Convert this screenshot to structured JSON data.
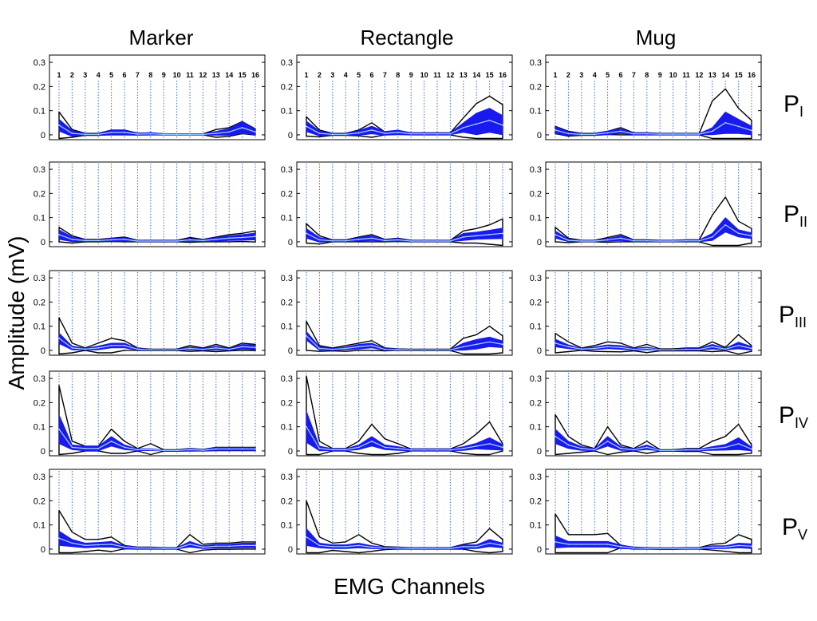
{
  "figure": {
    "columns": [
      "Marker",
      "Rectangle",
      "Mug"
    ],
    "rows": [
      {
        "main": "P",
        "sub": "I"
      },
      {
        "main": "P",
        "sub": "II"
      },
      {
        "main": "P",
        "sub": "III"
      },
      {
        "main": "P",
        "sub": "IV"
      },
      {
        "main": "P",
        "sub": "V"
      }
    ],
    "ylabel": "Amplitude (mV)",
    "xlabel": "EMG Channels"
  },
  "colors": {
    "band_fill": "#1a1aee",
    "envelope": "#000000",
    "mean_line": "#9fd8ff",
    "channel_grid": "#3a6ad8"
  },
  "chart_data": {
    "type": "line",
    "x": [
      1,
      2,
      3,
      4,
      5,
      6,
      7,
      8,
      9,
      10,
      11,
      12,
      13,
      14,
      15,
      16
    ],
    "channel_labels": [
      "1",
      "2",
      "3",
      "4",
      "5",
      "6",
      "7",
      "8",
      "9",
      "10",
      "11",
      "12",
      "13",
      "14",
      "15",
      "16"
    ],
    "channel_labels_shown_in_row": 0,
    "ylim": [
      -0.02,
      0.33
    ],
    "yticks": [
      0,
      0.1,
      0.2,
      0.3
    ],
    "ytick_labels": [
      "0",
      "0.1",
      "0.2",
      "0.3"
    ],
    "vertical_channel_grid": true,
    "panels": [
      {
        "column": "Marker",
        "row": "PI",
        "mean": [
          0.04,
          0.006,
          0.002,
          0.002,
          0.01,
          0.01,
          0.003,
          0.004,
          0.002,
          0.002,
          0.002,
          0.002,
          0.006,
          0.012,
          0.03,
          0.012
        ],
        "inner": [
          0.025,
          0.012,
          0.004,
          0.004,
          0.01,
          0.01,
          0.004,
          0.005,
          0.003,
          0.003,
          0.003,
          0.003,
          0.008,
          0.014,
          0.025,
          0.012
        ],
        "outer": [
          0.095,
          0.022,
          0.006,
          0.006,
          0.02,
          0.02,
          0.007,
          0.008,
          0.004,
          0.004,
          0.004,
          0.004,
          0.022,
          0.03,
          0.055,
          0.025
        ]
      },
      {
        "column": "Rectangle",
        "row": "PI",
        "mean": [
          0.035,
          0.006,
          0.002,
          0.002,
          0.008,
          0.02,
          0.006,
          0.01,
          0.004,
          0.004,
          0.004,
          0.004,
          0.03,
          0.045,
          0.06,
          0.04
        ],
        "inner": [
          0.022,
          0.01,
          0.004,
          0.004,
          0.01,
          0.016,
          0.008,
          0.01,
          0.004,
          0.004,
          0.004,
          0.004,
          0.02,
          0.045,
          0.05,
          0.04
        ],
        "outer": [
          0.075,
          0.02,
          0.006,
          0.006,
          0.02,
          0.05,
          0.012,
          0.018,
          0.008,
          0.008,
          0.008,
          0.008,
          0.07,
          0.13,
          0.16,
          0.125
        ]
      },
      {
        "column": "Mug",
        "row": "PI",
        "mean": [
          0.02,
          0.005,
          0.002,
          0.002,
          0.008,
          0.015,
          0.004,
          0.004,
          0.003,
          0.003,
          0.003,
          0.003,
          0.015,
          0.05,
          0.035,
          0.018
        ],
        "inner": [
          0.014,
          0.008,
          0.004,
          0.004,
          0.008,
          0.01,
          0.004,
          0.004,
          0.003,
          0.003,
          0.003,
          0.003,
          0.015,
          0.045,
          0.03,
          0.018
        ],
        "outer": [
          0.035,
          0.015,
          0.006,
          0.006,
          0.015,
          0.03,
          0.008,
          0.008,
          0.006,
          0.006,
          0.006,
          0.006,
          0.14,
          0.19,
          0.11,
          0.06
        ]
      },
      {
        "column": "Marker",
        "row": "PII",
        "mean": [
          0.03,
          0.01,
          0.005,
          0.005,
          0.008,
          0.01,
          0.003,
          0.003,
          0.003,
          0.003,
          0.008,
          0.005,
          0.01,
          0.015,
          0.018,
          0.022
        ],
        "inner": [
          0.02,
          0.01,
          0.004,
          0.004,
          0.006,
          0.008,
          0.003,
          0.003,
          0.003,
          0.003,
          0.006,
          0.004,
          0.008,
          0.01,
          0.012,
          0.014
        ],
        "outer": [
          0.06,
          0.025,
          0.01,
          0.01,
          0.015,
          0.02,
          0.006,
          0.006,
          0.006,
          0.006,
          0.018,
          0.01,
          0.02,
          0.03,
          0.035,
          0.045
        ]
      },
      {
        "column": "Rectangle",
        "row": "PII",
        "mean": [
          0.035,
          0.008,
          0.004,
          0.004,
          0.01,
          0.015,
          0.005,
          0.008,
          0.003,
          0.003,
          0.003,
          0.003,
          0.02,
          0.025,
          0.03,
          0.035
        ],
        "inner": [
          0.02,
          0.01,
          0.004,
          0.004,
          0.008,
          0.01,
          0.004,
          0.006,
          0.003,
          0.003,
          0.003,
          0.003,
          0.015,
          0.015,
          0.018,
          0.022
        ],
        "outer": [
          0.075,
          0.025,
          0.008,
          0.008,
          0.02,
          0.03,
          0.01,
          0.015,
          0.006,
          0.006,
          0.006,
          0.006,
          0.045,
          0.055,
          0.07,
          0.095
        ]
      },
      {
        "column": "Mug",
        "row": "PII",
        "mean": [
          0.03,
          0.006,
          0.003,
          0.003,
          0.008,
          0.015,
          0.004,
          0.004,
          0.003,
          0.003,
          0.004,
          0.004,
          0.02,
          0.07,
          0.035,
          0.025
        ],
        "inner": [
          0.015,
          0.006,
          0.003,
          0.003,
          0.006,
          0.01,
          0.004,
          0.004,
          0.003,
          0.003,
          0.004,
          0.004,
          0.015,
          0.03,
          0.015,
          0.012
        ],
        "outer": [
          0.06,
          0.015,
          0.006,
          0.006,
          0.018,
          0.03,
          0.008,
          0.008,
          0.006,
          0.006,
          0.008,
          0.008,
          0.11,
          0.185,
          0.085,
          0.055
        ]
      },
      {
        "column": "Marker",
        "row": "PIII",
        "mean": [
          0.05,
          0.01,
          0.005,
          0.01,
          0.02,
          0.02,
          0.005,
          0.002,
          0.002,
          0.002,
          0.008,
          0.004,
          0.01,
          0.004,
          0.015,
          0.012
        ],
        "inner": [
          0.022,
          0.008,
          0.004,
          0.008,
          0.01,
          0.01,
          0.004,
          0.002,
          0.002,
          0.002,
          0.006,
          0.004,
          0.008,
          0.004,
          0.01,
          0.01
        ],
        "outer": [
          0.135,
          0.03,
          0.01,
          0.03,
          0.05,
          0.04,
          0.01,
          0.005,
          0.005,
          0.005,
          0.02,
          0.01,
          0.025,
          0.01,
          0.03,
          0.025
        ]
      },
      {
        "column": "Rectangle",
        "row": "PIII",
        "mean": [
          0.06,
          0.008,
          0.004,
          0.008,
          0.015,
          0.02,
          0.004,
          0.003,
          0.002,
          0.002,
          0.002,
          0.002,
          0.015,
          0.025,
          0.035,
          0.025
        ],
        "inner": [
          0.018,
          0.008,
          0.004,
          0.006,
          0.01,
          0.01,
          0.004,
          0.003,
          0.002,
          0.002,
          0.002,
          0.002,
          0.015,
          0.02,
          0.02,
          0.014
        ],
        "outer": [
          0.12,
          0.02,
          0.01,
          0.02,
          0.03,
          0.04,
          0.01,
          0.006,
          0.005,
          0.005,
          0.005,
          0.005,
          0.05,
          0.065,
          0.1,
          0.06
        ]
      },
      {
        "column": "Mug",
        "row": "PIII",
        "mean": [
          0.03,
          0.015,
          0.005,
          0.008,
          0.015,
          0.012,
          0.004,
          0.008,
          0.002,
          0.002,
          0.004,
          0.004,
          0.015,
          0.005,
          0.02,
          0.008
        ],
        "inner": [
          0.016,
          0.008,
          0.004,
          0.006,
          0.008,
          0.008,
          0.004,
          0.006,
          0.002,
          0.002,
          0.004,
          0.004,
          0.01,
          0.004,
          0.014,
          0.008
        ],
        "outer": [
          0.07,
          0.035,
          0.01,
          0.02,
          0.035,
          0.03,
          0.01,
          0.025,
          0.006,
          0.006,
          0.01,
          0.01,
          0.035,
          0.012,
          0.065,
          0.02
        ]
      },
      {
        "column": "Marker",
        "row": "PIV",
        "mean": [
          0.09,
          0.015,
          0.01,
          0.01,
          0.04,
          0.015,
          0.005,
          0.005,
          0.002,
          0.002,
          0.005,
          0.003,
          0.008,
          0.008,
          0.008,
          0.008
        ],
        "inner": [
          0.06,
          0.01,
          0.01,
          0.01,
          0.02,
          0.01,
          0.004,
          0.004,
          0.002,
          0.002,
          0.004,
          0.003,
          0.006,
          0.006,
          0.006,
          0.006
        ],
        "outer": [
          0.27,
          0.04,
          0.02,
          0.02,
          0.09,
          0.04,
          0.01,
          0.03,
          0.005,
          0.005,
          0.01,
          0.006,
          0.015,
          0.015,
          0.015,
          0.015
        ]
      },
      {
        "column": "Rectangle",
        "row": "PIV",
        "mean": [
          0.1,
          0.01,
          0.005,
          0.005,
          0.015,
          0.04,
          0.015,
          0.01,
          0.004,
          0.004,
          0.004,
          0.004,
          0.01,
          0.02,
          0.03,
          0.015
        ],
        "inner": [
          0.065,
          0.01,
          0.004,
          0.004,
          0.01,
          0.02,
          0.01,
          0.008,
          0.004,
          0.004,
          0.004,
          0.004,
          0.008,
          0.012,
          0.025,
          0.012
        ],
        "outer": [
          0.31,
          0.04,
          0.01,
          0.01,
          0.04,
          0.11,
          0.05,
          0.03,
          0.008,
          0.008,
          0.008,
          0.008,
          0.03,
          0.07,
          0.12,
          0.03
        ]
      },
      {
        "column": "Mug",
        "row": "PIV",
        "mean": [
          0.06,
          0.025,
          0.01,
          0.005,
          0.04,
          0.01,
          0.005,
          0.015,
          0.002,
          0.002,
          0.004,
          0.004,
          0.01,
          0.015,
          0.03,
          0.008
        ],
        "inner": [
          0.03,
          0.015,
          0.008,
          0.004,
          0.02,
          0.008,
          0.004,
          0.01,
          0.002,
          0.002,
          0.004,
          0.004,
          0.008,
          0.012,
          0.025,
          0.008
        ],
        "outer": [
          0.15,
          0.06,
          0.025,
          0.01,
          0.1,
          0.025,
          0.01,
          0.04,
          0.005,
          0.005,
          0.01,
          0.01,
          0.04,
          0.06,
          0.11,
          0.025
        ]
      },
      {
        "column": "Marker",
        "row": "PV",
        "mean": [
          0.045,
          0.025,
          0.015,
          0.018,
          0.02,
          0.008,
          0.004,
          0.004,
          0.003,
          0.003,
          0.02,
          0.008,
          0.012,
          0.012,
          0.015,
          0.015
        ],
        "inner": [
          0.03,
          0.015,
          0.01,
          0.01,
          0.012,
          0.006,
          0.004,
          0.004,
          0.003,
          0.003,
          0.012,
          0.006,
          0.008,
          0.008,
          0.01,
          0.01
        ],
        "outer": [
          0.16,
          0.07,
          0.04,
          0.04,
          0.05,
          0.015,
          0.008,
          0.008,
          0.006,
          0.006,
          0.06,
          0.02,
          0.025,
          0.025,
          0.03,
          0.03
        ]
      },
      {
        "column": "Rectangle",
        "row": "PV",
        "mean": [
          0.05,
          0.015,
          0.01,
          0.01,
          0.015,
          0.008,
          0.004,
          0.004,
          0.003,
          0.003,
          0.003,
          0.003,
          0.01,
          0.01,
          0.025,
          0.015
        ],
        "inner": [
          0.035,
          0.01,
          0.008,
          0.008,
          0.01,
          0.006,
          0.004,
          0.004,
          0.003,
          0.003,
          0.003,
          0.003,
          0.008,
          0.008,
          0.015,
          0.01
        ],
        "outer": [
          0.2,
          0.05,
          0.025,
          0.03,
          0.06,
          0.025,
          0.01,
          0.008,
          0.006,
          0.006,
          0.006,
          0.006,
          0.02,
          0.03,
          0.085,
          0.04
        ]
      },
      {
        "column": "Mug",
        "row": "PV",
        "mean": [
          0.03,
          0.02,
          0.02,
          0.02,
          0.02,
          0.01,
          0.004,
          0.003,
          0.002,
          0.002,
          0.003,
          0.003,
          0.008,
          0.008,
          0.015,
          0.012
        ],
        "inner": [
          0.025,
          0.012,
          0.012,
          0.012,
          0.012,
          0.008,
          0.004,
          0.003,
          0.002,
          0.002,
          0.003,
          0.003,
          0.006,
          0.006,
          0.01,
          0.01
        ],
        "outer": [
          0.145,
          0.06,
          0.06,
          0.06,
          0.065,
          0.015,
          0.008,
          0.006,
          0.005,
          0.005,
          0.006,
          0.006,
          0.02,
          0.025,
          0.06,
          0.04
        ]
      }
    ]
  }
}
